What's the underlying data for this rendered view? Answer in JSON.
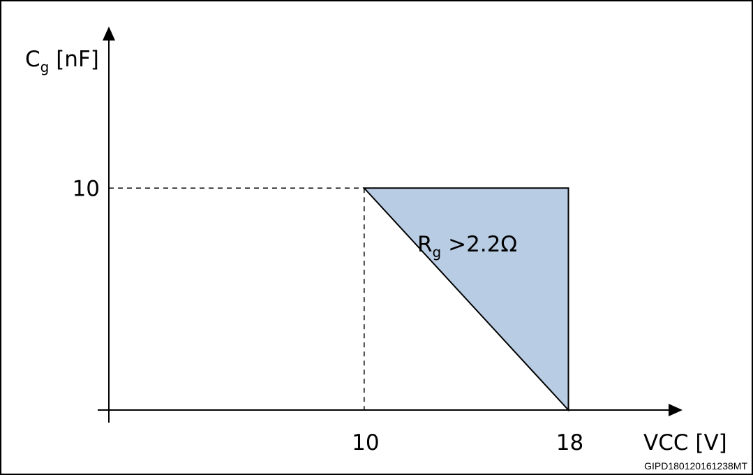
{
  "chart_data": {
    "type": "area",
    "title": "",
    "ylabel": {
      "main": "C",
      "sub": "g",
      "unit": " [nF]"
    },
    "xlabel": "VCC [V]",
    "x_ticks": [
      {
        "value": 10,
        "label": "10"
      },
      {
        "value": 18,
        "label": "18"
      }
    ],
    "y_ticks": [
      {
        "value": 10,
        "label": "10"
      }
    ],
    "xlim": [
      0,
      24
    ],
    "ylim": [
      0,
      17.5
    ],
    "region": {
      "points": [
        {
          "x": 10,
          "y": 10
        },
        {
          "x": 18,
          "y": 10
        },
        {
          "x": 18,
          "y": 0
        }
      ],
      "fill": "#b8cce4",
      "label": {
        "main": "R",
        "sub": "g",
        "rest": " >2.2Ω"
      }
    },
    "guides": [
      {
        "x": 10,
        "y": 10
      }
    ],
    "grid": false
  },
  "figure_code": "GIPD180120161238MT"
}
